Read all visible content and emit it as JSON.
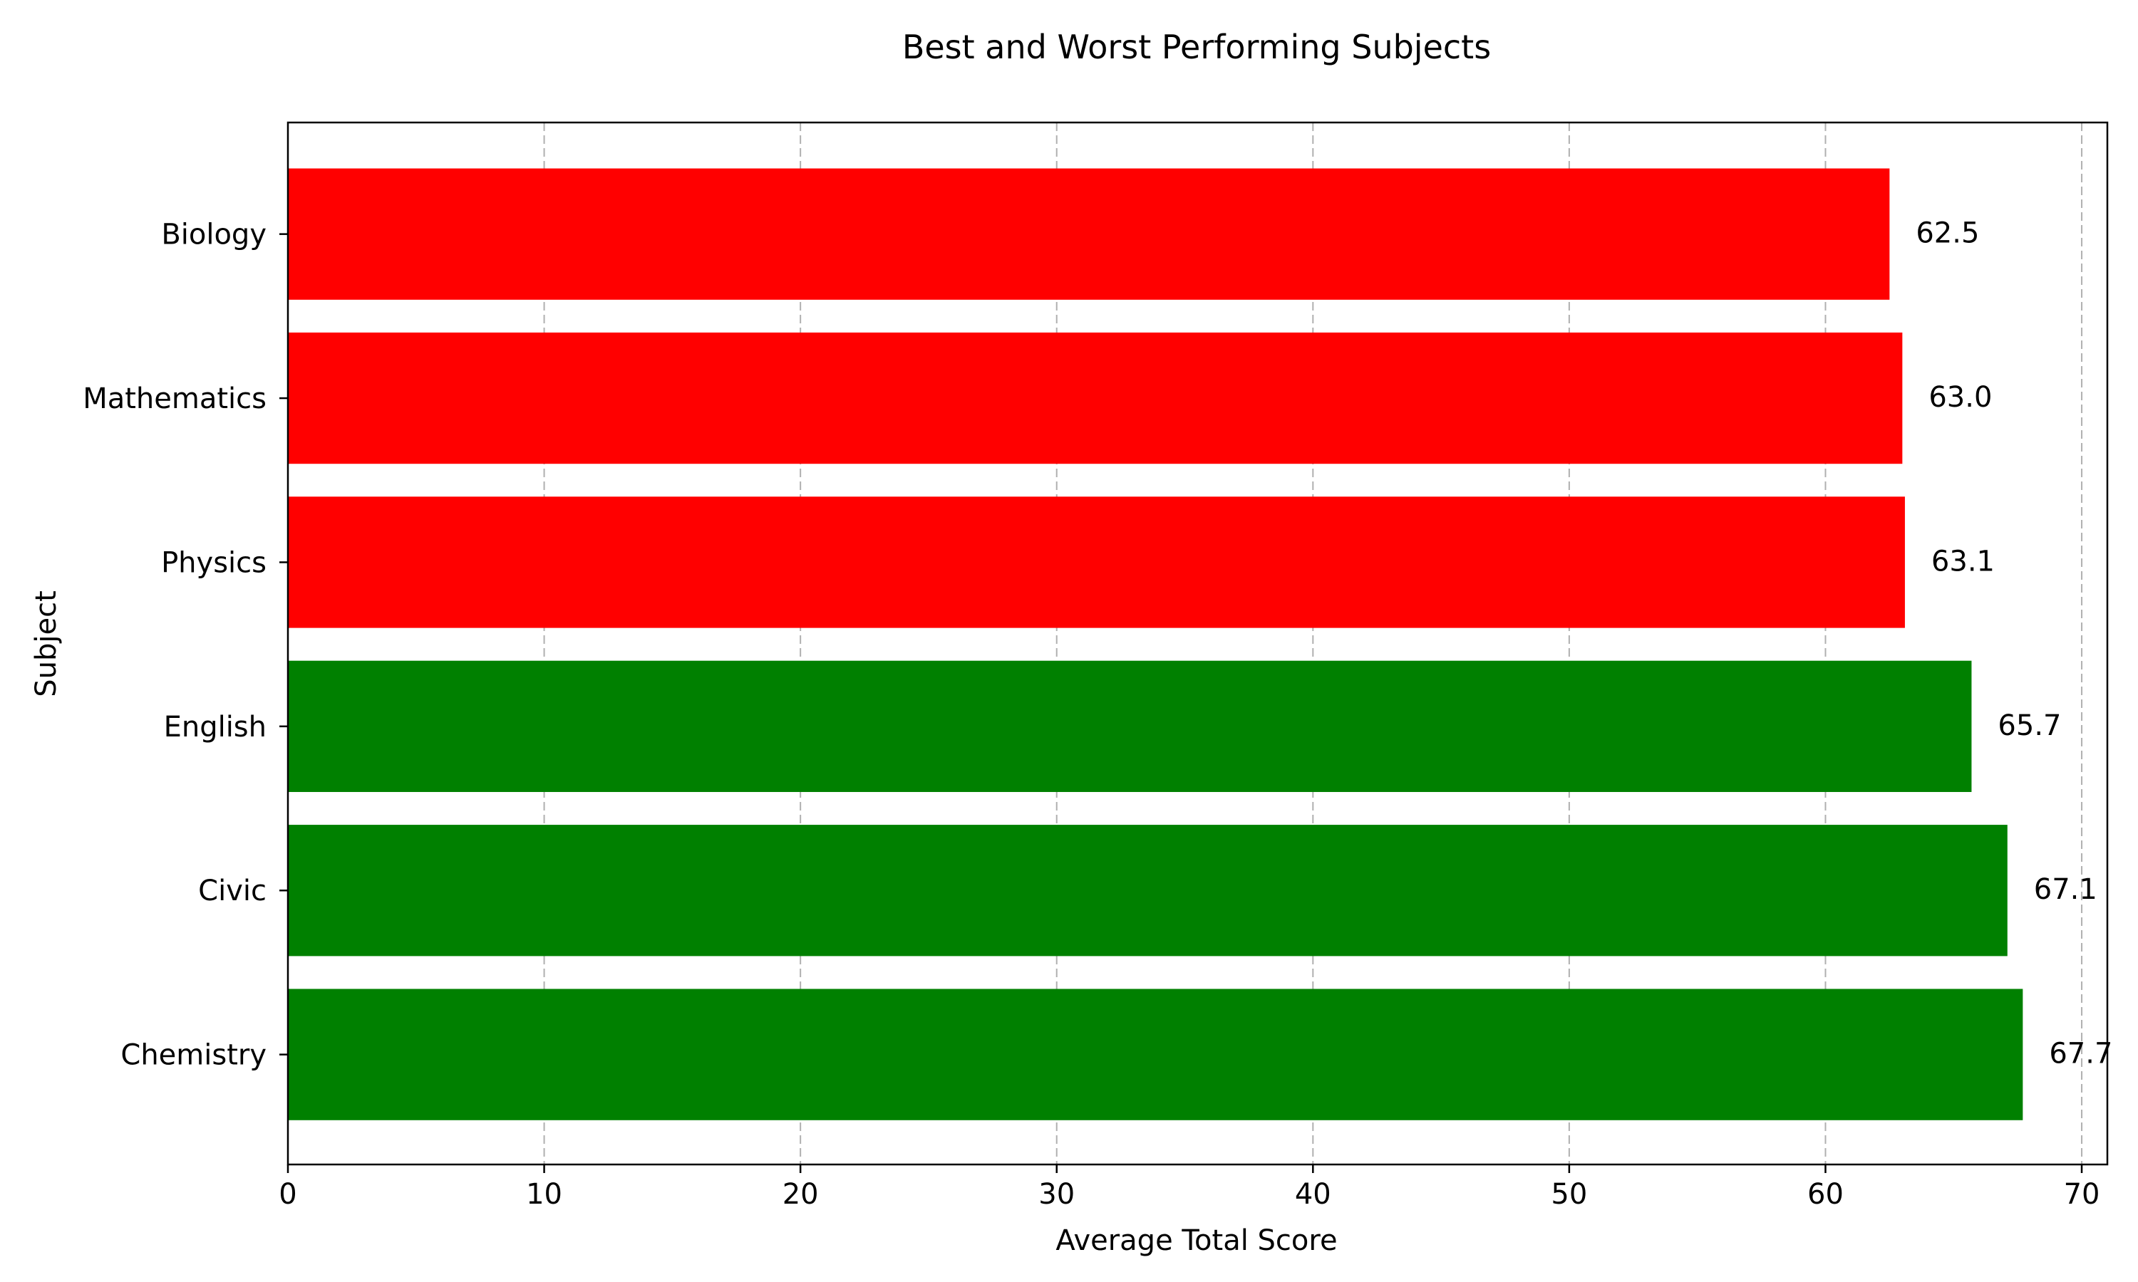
{
  "chart_data": {
    "type": "bar",
    "orientation": "horizontal",
    "title": "Best and Worst Performing Subjects",
    "xlabel": "Average Total Score",
    "ylabel": "Subject",
    "categories": [
      "Chemistry",
      "Civic",
      "English",
      "Physics",
      "Mathematics",
      "Biology"
    ],
    "values": [
      67.7,
      67.1,
      65.7,
      63.1,
      63.0,
      62.5
    ],
    "value_labels": [
      "67.7",
      "67.1",
      "65.7",
      "63.1",
      "63.0",
      "62.5"
    ],
    "groups": [
      "best",
      "best",
      "best",
      "worst",
      "worst",
      "worst"
    ],
    "colors": {
      "best": "#008000",
      "worst": "#ff0000",
      "grid": "#b0b0b0",
      "axis": "#000000"
    },
    "xlim": [
      0,
      71
    ],
    "xticks": [
      0,
      10,
      20,
      30,
      40,
      50,
      60,
      70
    ],
    "grid": "x-axis dashed",
    "legend": "none"
  }
}
